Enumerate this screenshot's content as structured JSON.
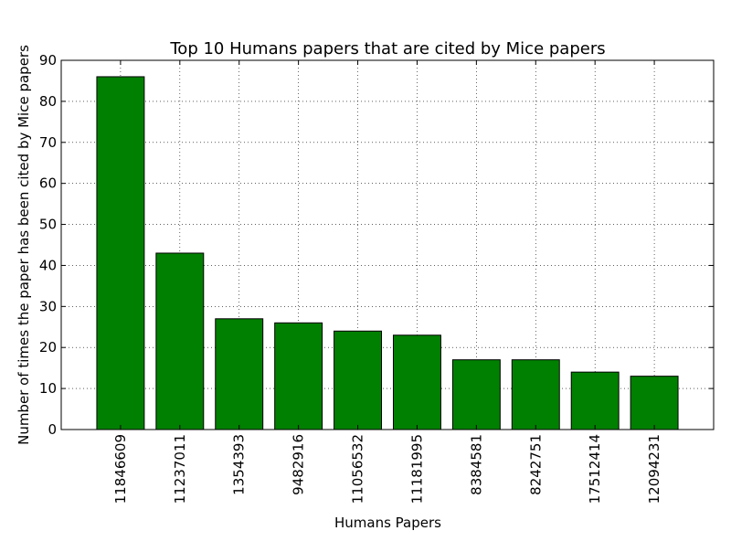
{
  "chart_data": {
    "type": "bar",
    "title": "Top 10 Humans papers that are cited by Mice papers",
    "xlabel": "Humans Papers",
    "ylabel": "Number of times the paper has been cited by Mice papers",
    "categories": [
      "11846609",
      "11237011",
      "1354393",
      "9482916",
      "11056532",
      "11181995",
      "8384581",
      "8242751",
      "17512414",
      "12094231"
    ],
    "values": [
      86,
      43,
      27,
      26,
      24,
      23,
      17,
      17,
      14,
      13
    ],
    "ylim": [
      0,
      90
    ],
    "yticks": [
      0,
      10,
      20,
      30,
      40,
      50,
      60,
      70,
      80,
      90
    ],
    "grid": true,
    "bar_color": "#008000",
    "edge_color": "#000000",
    "x_tick_rotation": "vertical"
  }
}
